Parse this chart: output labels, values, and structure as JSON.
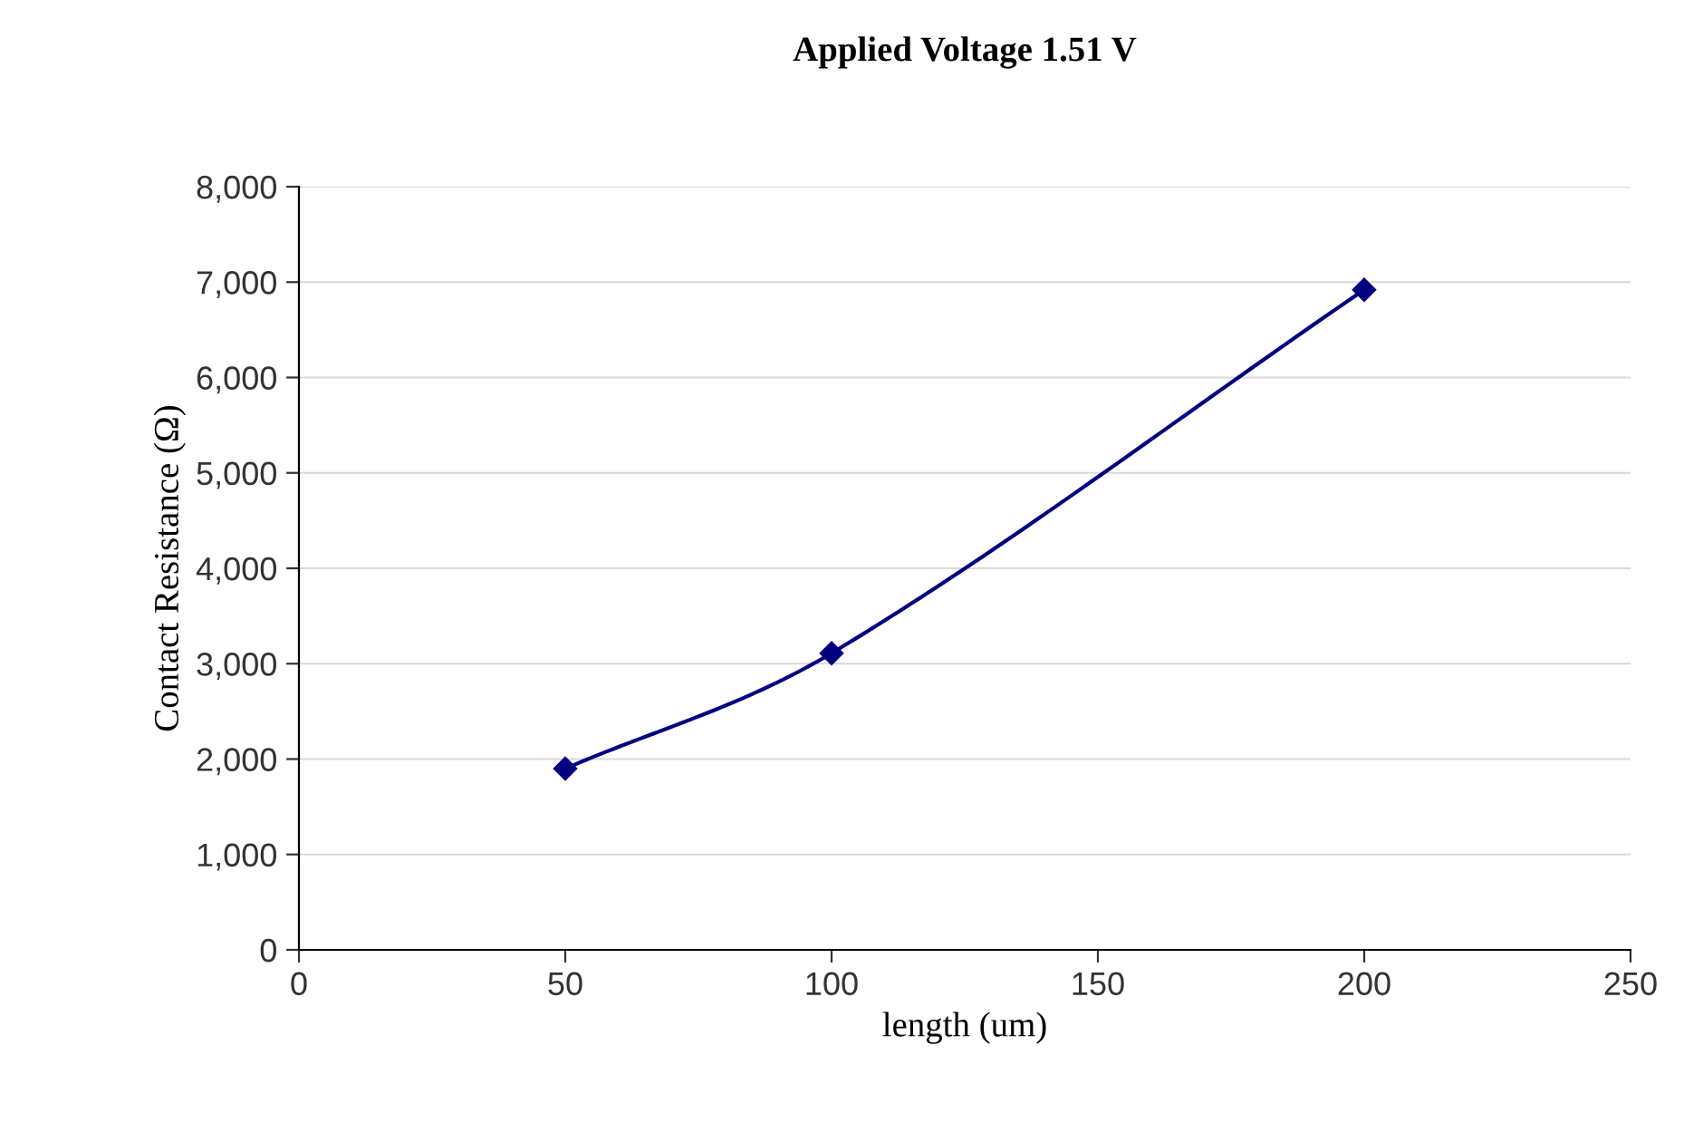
{
  "chart_data": {
    "type": "line",
    "title": "Applied Voltage 1.51 V",
    "xlabel": "length (um)",
    "ylabel": "Contact Resistance (Ω)",
    "x": [
      50,
      100,
      200
    ],
    "series": [
      {
        "color": "#000080",
        "values": [
          1900,
          3110,
          6920
        ]
      }
    ],
    "xlim": [
      0,
      250
    ],
    "xticks": [
      0,
      50,
      100,
      150,
      200,
      250
    ],
    "ylim": [
      0,
      8000
    ],
    "yticks": [
      {
        "value": 0,
        "label": "0"
      },
      {
        "value": 1000,
        "label": "1,000"
      },
      {
        "value": 2000,
        "label": "2,000"
      },
      {
        "value": 3000,
        "label": "3,000"
      },
      {
        "value": 4000,
        "label": "4,000"
      },
      {
        "value": 5000,
        "label": "5,000"
      },
      {
        "value": 6000,
        "label": "6,000"
      },
      {
        "value": 7000,
        "label": "7,000"
      },
      {
        "value": 8000,
        "label": "8,000"
      }
    ],
    "grid": "y",
    "marker": "diamond",
    "line_style": "solid"
  }
}
